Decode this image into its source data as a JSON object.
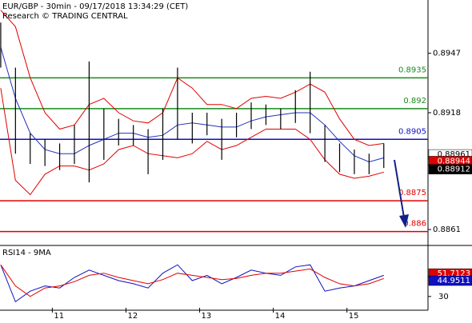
{
  "chart_data": {
    "type": "ohlc",
    "title": "EUR/GBP - 30min - 09/17/2018 13:34:29 (CET)",
    "subtitle": "Research © TRADING CENTRAL",
    "x": [
      10.3,
      10.5,
      10.7,
      10.9,
      11.1,
      11.3,
      11.5,
      11.7,
      11.9,
      12.1,
      12.3,
      12.5,
      12.7,
      12.9,
      13.1,
      13.3,
      13.5,
      13.7,
      13.9,
      14.1,
      14.3,
      14.5,
      14.7,
      14.9,
      15.1,
      15.3,
      15.5
    ],
    "xlim": [
      10.29,
      16.1
    ],
    "xticks": [
      11,
      12,
      13,
      14,
      15
    ],
    "high": [
      0.8962,
      0.894,
      0.8908,
      0.8905,
      0.8903,
      0.8912,
      0.8943,
      0.892,
      0.8915,
      0.8912,
      0.891,
      0.892,
      0.894,
      0.8918,
      0.8918,
      0.8915,
      0.8918,
      0.8923,
      0.8922,
      0.892,
      0.8929,
      0.8938,
      0.8912,
      0.8903,
      0.89,
      0.8898,
      0.8903
    ],
    "low": [
      0.894,
      0.8898,
      0.8893,
      0.8892,
      0.889,
      0.8893,
      0.8884,
      0.8895,
      0.8902,
      0.8902,
      0.8888,
      0.8895,
      0.8905,
      0.8903,
      0.8907,
      0.8895,
      0.8906,
      0.891,
      0.8912,
      0.891,
      0.8913,
      0.8908,
      0.8894,
      0.8889,
      0.8888,
      0.8888,
      0.8891
    ],
    "series": [
      {
        "color": "#e00000",
        "values": [
          0.8968,
          0.896,
          0.8935,
          0.8918,
          0.891,
          0.8912,
          0.8922,
          0.8925,
          0.8918,
          0.8914,
          0.8913,
          0.8918,
          0.8935,
          0.893,
          0.8922,
          0.8922,
          0.892,
          0.8925,
          0.8926,
          0.8925,
          0.8928,
          0.8932,
          0.8928,
          0.8915,
          0.8905,
          0.8902,
          0.8903
        ]
      },
      {
        "color": "#e00000",
        "values": [
          0.893,
          0.8885,
          0.8878,
          0.8888,
          0.8892,
          0.8892,
          0.889,
          0.8893,
          0.89,
          0.8902,
          0.8898,
          0.8897,
          0.8896,
          0.8898,
          0.8904,
          0.89,
          0.8902,
          0.8906,
          0.891,
          0.891,
          0.891,
          0.8905,
          0.8895,
          0.8888,
          0.8886,
          0.8887,
          0.8889
        ]
      },
      {
        "color": "#2030c0",
        "values": [
          0.895,
          0.8925,
          0.8908,
          0.89,
          0.8898,
          0.8898,
          0.8902,
          0.8905,
          0.8908,
          0.8908,
          0.8906,
          0.8907,
          0.8912,
          0.8913,
          0.8912,
          0.8911,
          0.8911,
          0.8914,
          0.8916,
          0.8917,
          0.8918,
          0.8918,
          0.8912,
          0.8904,
          0.8897,
          0.8894,
          0.8896
        ]
      }
    ],
    "ylim": [
      0.8854,
      0.8973
    ],
    "yticks": [
      0.8861,
      0.8918,
      0.8947
    ],
    "levels": [
      {
        "value": 0.8935,
        "color": "#1a8a1a"
      },
      {
        "value": 0.892,
        "color": "#1a8a1a"
      },
      {
        "value": 0.8905,
        "color": "#1010c0"
      },
      {
        "value": 0.8875,
        "color": "#e00000"
      },
      {
        "value": 0.886,
        "color": "#e00000"
      }
    ],
    "price_tags": [
      {
        "value": 0.88961,
        "color": "#ffffff"
      },
      {
        "value": 0.88944,
        "color": "#e00000"
      },
      {
        "value": 0.88912,
        "color": "#000000"
      }
    ],
    "rsi": {
      "title": "RSI14 - 9MA",
      "ylim": [
        17,
        76
      ],
      "yticks": [
        30
      ],
      "series": [
        {
          "color": "#1010c0",
          "values": [
            60,
            25,
            35,
            40,
            38,
            48,
            55,
            50,
            45,
            42,
            38,
            52,
            60,
            45,
            50,
            42,
            48,
            55,
            52,
            50,
            58,
            60,
            35,
            38,
            40,
            45,
            50
          ]
        },
        {
          "color": "#e00000",
          "values": [
            60,
            40,
            30,
            38,
            40,
            44,
            50,
            52,
            48,
            45,
            42,
            46,
            52,
            50,
            48,
            46,
            47,
            50,
            52,
            52,
            54,
            56,
            48,
            42,
            40,
            42,
            47
          ]
        }
      ],
      "tags": [
        {
          "value": 51.7123,
          "color": "#e00000"
        },
        {
          "value": 44.9511,
          "color": "#1010c0"
        }
      ]
    }
  }
}
